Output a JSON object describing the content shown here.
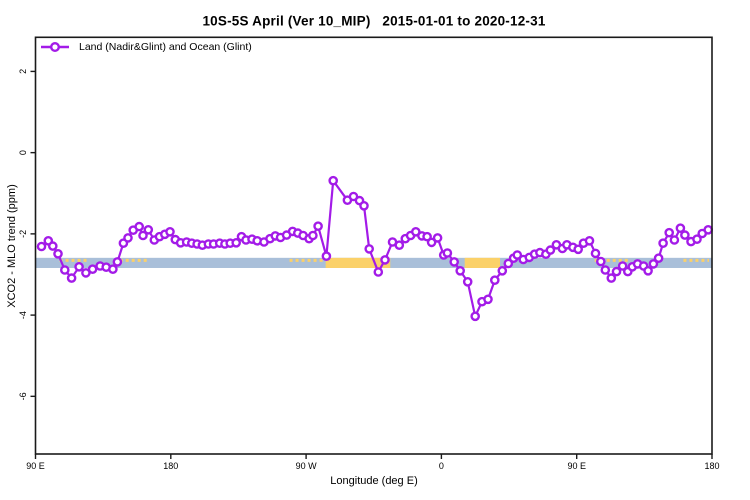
{
  "colors": {
    "series_line": "#A31BE8",
    "marker_fill": "#FFFFFF",
    "band_blue": "#A9BFD9",
    "band_orange": "#FBD169",
    "axis": "#1A1A1A",
    "text": "#000000"
  },
  "chart_data": {
    "type": "line",
    "title": "10S-5S April (Ver 10_MIP)   2015-01-01 to 2020-12-31",
    "xlabel": "Longitude (deg E)",
    "ylabel": "XCO2 - MLO trend (ppm)",
    "legend": "Land (Nadir&Glint) and Ocean (Glint)",
    "legend_position": "top-left",
    "grid": false,
    "xlim": [
      90,
      540
    ],
    "ylim": [
      -7.42,
      2.84
    ],
    "x_ticks": [
      {
        "v": 90,
        "label": "90 E"
      },
      {
        "v": 180,
        "label": "180"
      },
      {
        "v": 270,
        "label": "90 W"
      },
      {
        "v": 360,
        "label": "0"
      },
      {
        "v": 450,
        "label": "90 E"
      },
      {
        "v": 540,
        "label": "180"
      }
    ],
    "y_ticks": [
      {
        "v": 2,
        "label": "2"
      },
      {
        "v": 0,
        "label": "0"
      },
      {
        "v": -2,
        "label": "-2"
      },
      {
        "v": -4,
        "label": "-4"
      },
      {
        "v": -6,
        "label": "-6"
      }
    ],
    "bands": {
      "blue": {
        "x": [
          90,
          540
        ],
        "y": [
          -2.59,
          -2.84
        ]
      },
      "orange_solid": [
        [
          283,
          326
        ],
        [
          375.5,
          399
        ]
      ],
      "orange_dashed": [
        [
          106,
          126
        ],
        [
          146,
          165
        ],
        [
          259,
          282
        ],
        [
          462,
          486
        ],
        [
          521,
          538
        ]
      ]
    },
    "series": [
      {
        "name": "Land (Nadir&Glint) and Ocean (Glint)",
        "points": [
          [
            94,
            -2.31
          ],
          [
            98.5,
            -2.17
          ],
          [
            101.5,
            -2.3
          ],
          [
            105,
            -2.49
          ],
          [
            109.5,
            -2.89
          ],
          [
            114,
            -3.09
          ],
          [
            119,
            -2.81
          ],
          [
            123.5,
            -2.96
          ],
          [
            128,
            -2.87
          ],
          [
            133,
            -2.79
          ],
          [
            137,
            -2.82
          ],
          [
            141.5,
            -2.87
          ],
          [
            144.5,
            -2.69
          ],
          [
            148.5,
            -2.23
          ],
          [
            151.5,
            -2.1
          ],
          [
            155,
            -1.91
          ],
          [
            159,
            -1.82
          ],
          [
            161.5,
            -2.04
          ],
          [
            165,
            -1.9
          ],
          [
            169,
            -2.15
          ],
          [
            172.5,
            -2.07
          ],
          [
            176,
            -2.01
          ],
          [
            179.5,
            -1.95
          ],
          [
            183,
            -2.14
          ],
          [
            186.5,
            -2.22
          ],
          [
            190.5,
            -2.2
          ],
          [
            194,
            -2.23
          ],
          [
            197.5,
            -2.25
          ],
          [
            201,
            -2.28
          ],
          [
            205,
            -2.25
          ],
          [
            208.5,
            -2.25
          ],
          [
            212.5,
            -2.23
          ],
          [
            216,
            -2.25
          ],
          [
            219.5,
            -2.23
          ],
          [
            223.5,
            -2.22
          ],
          [
            227,
            -2.07
          ],
          [
            230,
            -2.15
          ],
          [
            234,
            -2.13
          ],
          [
            237.5,
            -2.17
          ],
          [
            242,
            -2.2
          ],
          [
            246,
            -2.12
          ],
          [
            249.5,
            -2.05
          ],
          [
            253,
            -2.09
          ],
          [
            257,
            -2.03
          ],
          [
            261,
            -1.94
          ],
          [
            264.5,
            -1.98
          ],
          [
            268,
            -2.04
          ],
          [
            272,
            -2.12
          ],
          [
            274.5,
            -2.04
          ],
          [
            278,
            -1.81
          ],
          [
            283.5,
            -2.55
          ],
          [
            288,
            -0.69
          ],
          [
            297.5,
            -1.17
          ],
          [
            301.5,
            -1.08
          ],
          [
            305.5,
            -1.18
          ],
          [
            308.5,
            -1.31
          ],
          [
            312,
            -2.37
          ],
          [
            318,
            -2.94
          ],
          [
            322.5,
            -2.64
          ],
          [
            327.5,
            -2.2
          ],
          [
            332,
            -2.28
          ],
          [
            336,
            -2.12
          ],
          [
            339.5,
            -2.04
          ],
          [
            343,
            -1.95
          ],
          [
            347,
            -2.05
          ],
          [
            350.5,
            -2.07
          ],
          [
            353.5,
            -2.21
          ],
          [
            357.5,
            -2.1
          ],
          [
            361.5,
            -2.52
          ],
          [
            364,
            -2.47
          ],
          [
            368.5,
            -2.69
          ],
          [
            372.5,
            -2.91
          ],
          [
            377.5,
            -3.18
          ],
          [
            382.5,
            -4.03
          ],
          [
            387,
            -3.67
          ],
          [
            391,
            -3.61
          ],
          [
            395.5,
            -3.14
          ],
          [
            400.5,
            -2.91
          ],
          [
            404.5,
            -2.73
          ],
          [
            408,
            -2.6
          ],
          [
            410.5,
            -2.52
          ],
          [
            414.5,
            -2.63
          ],
          [
            418.5,
            -2.58
          ],
          [
            422,
            -2.5
          ],
          [
            425.5,
            -2.46
          ],
          [
            429.5,
            -2.5
          ],
          [
            432.5,
            -2.4
          ],
          [
            436.5,
            -2.27
          ],
          [
            440.5,
            -2.36
          ],
          [
            443.5,
            -2.27
          ],
          [
            447.5,
            -2.33
          ],
          [
            451,
            -2.38
          ],
          [
            454.5,
            -2.23
          ],
          [
            458.5,
            -2.17
          ],
          [
            462.5,
            -2.48
          ],
          [
            466,
            -2.68
          ],
          [
            469,
            -2.89
          ],
          [
            473,
            -3.09
          ],
          [
            476.5,
            -2.93
          ],
          [
            480.5,
            -2.79
          ],
          [
            484,
            -2.93
          ],
          [
            487,
            -2.81
          ],
          [
            490.5,
            -2.74
          ],
          [
            494.5,
            -2.79
          ],
          [
            497.5,
            -2.91
          ],
          [
            501,
            -2.74
          ],
          [
            504.5,
            -2.6
          ],
          [
            507.5,
            -2.23
          ],
          [
            511.5,
            -1.97
          ],
          [
            515,
            -2.15
          ],
          [
            519,
            -1.86
          ],
          [
            522,
            -2.03
          ],
          [
            526,
            -2.19
          ],
          [
            530,
            -2.13
          ],
          [
            533.5,
            -1.99
          ],
          [
            537.5,
            -1.9
          ]
        ]
      }
    ]
  }
}
